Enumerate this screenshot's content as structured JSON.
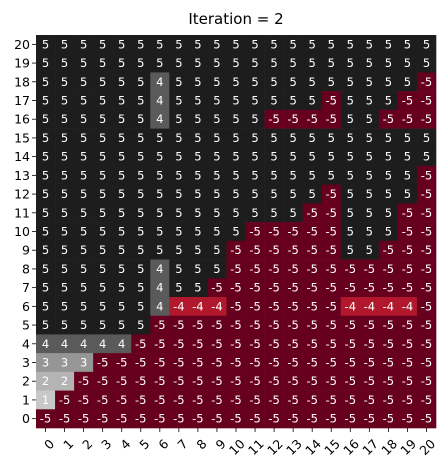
{
  "chart_data": {
    "type": "heatmap",
    "title": "Iteration = 2",
    "xlabel": "",
    "ylabel": "",
    "x_ticks": [
      "0",
      "1",
      "2",
      "3",
      "4",
      "5",
      "6",
      "7",
      "8",
      "9",
      "10",
      "11",
      "12",
      "13",
      "14",
      "15",
      "16",
      "17",
      "18",
      "19",
      "20"
    ],
    "y_ticks_top_to_bottom": [
      "20",
      "19",
      "18",
      "17",
      "16",
      "15",
      "14",
      "13",
      "12",
      "11",
      "10",
      "9",
      "8",
      "7",
      "6",
      "5",
      "4",
      "3",
      "2",
      "1",
      "0"
    ],
    "color_scale": {
      "-5": "#67001f",
      "-4": "#b2182b",
      "1": "#c8c8c8",
      "2": "#b4b4b4",
      "3": "#969696",
      "4": "#5a5a5a",
      "5": "#1d1d1d"
    },
    "text_color_dark_cells": "#ffffff",
    "rows_top_to_bottom": [
      [
        5,
        5,
        5,
        5,
        5,
        5,
        5,
        5,
        5,
        5,
        5,
        5,
        5,
        5,
        5,
        5,
        5,
        5,
        5,
        5,
        5
      ],
      [
        5,
        5,
        5,
        5,
        5,
        5,
        5,
        5,
        5,
        5,
        5,
        5,
        5,
        5,
        5,
        5,
        5,
        5,
        5,
        5,
        5
      ],
      [
        5,
        5,
        5,
        5,
        5,
        5,
        4,
        5,
        5,
        5,
        5,
        5,
        5,
        5,
        5,
        5,
        5,
        5,
        5,
        5,
        -5
      ],
      [
        5,
        5,
        5,
        5,
        5,
        5,
        4,
        5,
        5,
        5,
        5,
        5,
        5,
        5,
        5,
        -5,
        5,
        5,
        5,
        -5,
        -5
      ],
      [
        5,
        5,
        5,
        5,
        5,
        5,
        4,
        5,
        5,
        5,
        5,
        5,
        -5,
        -5,
        -5,
        -5,
        5,
        5,
        -5,
        -5,
        -5
      ],
      [
        5,
        5,
        5,
        5,
        5,
        5,
        5,
        5,
        5,
        5,
        5,
        5,
        5,
        5,
        5,
        5,
        5,
        5,
        5,
        5,
        5
      ],
      [
        5,
        5,
        5,
        5,
        5,
        5,
        5,
        5,
        5,
        5,
        5,
        5,
        5,
        5,
        5,
        5,
        5,
        5,
        5,
        5,
        5
      ],
      [
        5,
        5,
        5,
        5,
        5,
        5,
        5,
        5,
        5,
        5,
        5,
        5,
        5,
        5,
        5,
        5,
        5,
        5,
        5,
        5,
        -5
      ],
      [
        5,
        5,
        5,
        5,
        5,
        5,
        5,
        5,
        5,
        5,
        5,
        5,
        5,
        5,
        5,
        -5,
        5,
        5,
        5,
        5,
        -5
      ],
      [
        5,
        5,
        5,
        5,
        5,
        5,
        5,
        5,
        5,
        5,
        5,
        5,
        5,
        5,
        -5,
        -5,
        5,
        5,
        5,
        -5,
        -5
      ],
      [
        5,
        5,
        5,
        5,
        5,
        5,
        5,
        5,
        5,
        5,
        5,
        -5,
        -5,
        -5,
        -5,
        -5,
        5,
        5,
        5,
        -5,
        -5
      ],
      [
        5,
        5,
        5,
        5,
        5,
        5,
        5,
        5,
        5,
        5,
        -5,
        -5,
        -5,
        -5,
        -5,
        -5,
        5,
        5,
        -5,
        -5,
        -5
      ],
      [
        5,
        5,
        5,
        5,
        5,
        5,
        4,
        5,
        5,
        5,
        -5,
        -5,
        -5,
        -5,
        -5,
        -5,
        -5,
        -5,
        -5,
        -5,
        -5
      ],
      [
        5,
        5,
        5,
        5,
        5,
        5,
        4,
        5,
        5,
        -5,
        -5,
        -5,
        -5,
        -5,
        -5,
        -5,
        -5,
        -5,
        -5,
        -5,
        -5
      ],
      [
        5,
        5,
        5,
        5,
        5,
        5,
        4,
        -4,
        -4,
        -4,
        -5,
        -5,
        -5,
        -5,
        -5,
        -5,
        -4,
        -4,
        -4,
        -4,
        -5
      ],
      [
        5,
        5,
        5,
        5,
        5,
        5,
        -5,
        -5,
        -5,
        -5,
        -5,
        -5,
        -5,
        -5,
        -5,
        -5,
        -5,
        -5,
        -5,
        -5,
        -5
      ],
      [
        4,
        4,
        4,
        4,
        4,
        -5,
        -5,
        -5,
        -5,
        -5,
        -5,
        -5,
        -5,
        -5,
        -5,
        -5,
        -5,
        -5,
        -5,
        -5,
        -5
      ],
      [
        3,
        3,
        3,
        -5,
        -5,
        -5,
        -5,
        -5,
        -5,
        -5,
        -5,
        -5,
        -5,
        -5,
        -5,
        -5,
        -5,
        -5,
        -5,
        -5,
        -5
      ],
      [
        2,
        2,
        -5,
        -5,
        -5,
        -5,
        -5,
        -5,
        -5,
        -5,
        -5,
        -5,
        -5,
        -5,
        -5,
        -5,
        -5,
        -5,
        -5,
        -5,
        -5
      ],
      [
        1,
        -5,
        -5,
        -5,
        -5,
        -5,
        -5,
        -5,
        -5,
        -5,
        -5,
        -5,
        -5,
        -5,
        -5,
        -5,
        -5,
        -5,
        -5,
        -5,
        -5
      ],
      [
        -5,
        -5,
        -5,
        -5,
        -5,
        -5,
        -5,
        -5,
        -5,
        -5,
        -5,
        -5,
        -5,
        -5,
        -5,
        -5,
        -5,
        -5,
        -5,
        -5,
        -5
      ]
    ]
  }
}
